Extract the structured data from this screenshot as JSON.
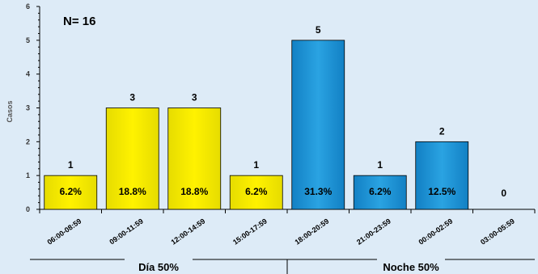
{
  "chart_data": {
    "type": "bar",
    "annotation": "N= 16",
    "ylabel": "Casos",
    "ylim": [
      0,
      6
    ],
    "yticks": [
      "0",
      "1",
      "2",
      "3",
      "4",
      "5",
      "6"
    ],
    "categories": [
      "06:00-08:59",
      "09:00-11:59",
      "12:00-14:59",
      "15:00-17:59",
      "18:00-20:59",
      "21:00-23:59",
      "00:00-02:59",
      "03:00-05:59"
    ],
    "values": [
      1,
      3,
      3,
      1,
      5,
      1,
      2,
      0
    ],
    "value_labels": [
      "1",
      "3",
      "3",
      "1",
      "5",
      "1",
      "2",
      "0"
    ],
    "percent_labels": [
      "6.2%",
      "18.8%",
      "18.8%",
      "6.2%",
      "31.3%",
      "6.2%",
      "12.5%",
      ""
    ],
    "groups": [
      {
        "label": "Día 50%",
        "span": [
          0,
          3
        ],
        "color": "#f2e600"
      },
      {
        "label": "Noche 50%",
        "span": [
          4,
          7
        ],
        "color": "#1a8bd0"
      }
    ],
    "colors": {
      "background": "#ddebf7",
      "day": "#f2e600",
      "night": "#1a8bd0"
    }
  }
}
